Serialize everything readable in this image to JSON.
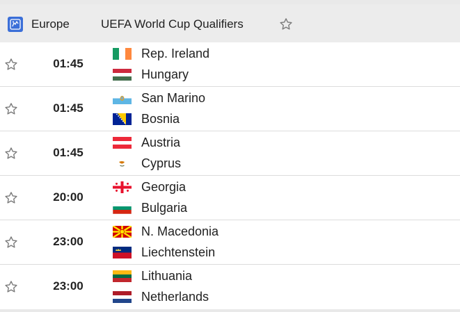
{
  "header": {
    "region": "Europe",
    "competition": "UEFA World Cup Qualifiers",
    "region_icon": "europe-icon",
    "favorite_icon": "star-outline-icon"
  },
  "matches": [
    {
      "time": "01:45",
      "home": "Rep. Ireland",
      "away": "Hungary",
      "home_flag": "ireland-flag",
      "away_flag": "hungary-flag"
    },
    {
      "time": "01:45",
      "home": "San Marino",
      "away": "Bosnia",
      "home_flag": "san-marino-flag",
      "away_flag": "bosnia-flag"
    },
    {
      "time": "01:45",
      "home": "Austria",
      "away": "Cyprus",
      "home_flag": "austria-flag",
      "away_flag": "cyprus-flag"
    },
    {
      "time": "20:00",
      "home": "Georgia",
      "away": "Bulgaria",
      "home_flag": "georgia-flag",
      "away_flag": "bulgaria-flag"
    },
    {
      "time": "23:00",
      "home": "N. Macedonia",
      "away": "Liechtenstein",
      "home_flag": "north-macedonia-flag",
      "away_flag": "liechtenstein-flag"
    },
    {
      "time": "23:00",
      "home": "Lithuania",
      "away": "Netherlands",
      "home_flag": "lithuania-flag",
      "away_flag": "netherlands-flag"
    }
  ],
  "colors": {
    "header_bg": "#ececec",
    "region_icon_bg": "#3b6fd8",
    "star": "#7a7a7a",
    "divider": "#dcdcdc"
  }
}
